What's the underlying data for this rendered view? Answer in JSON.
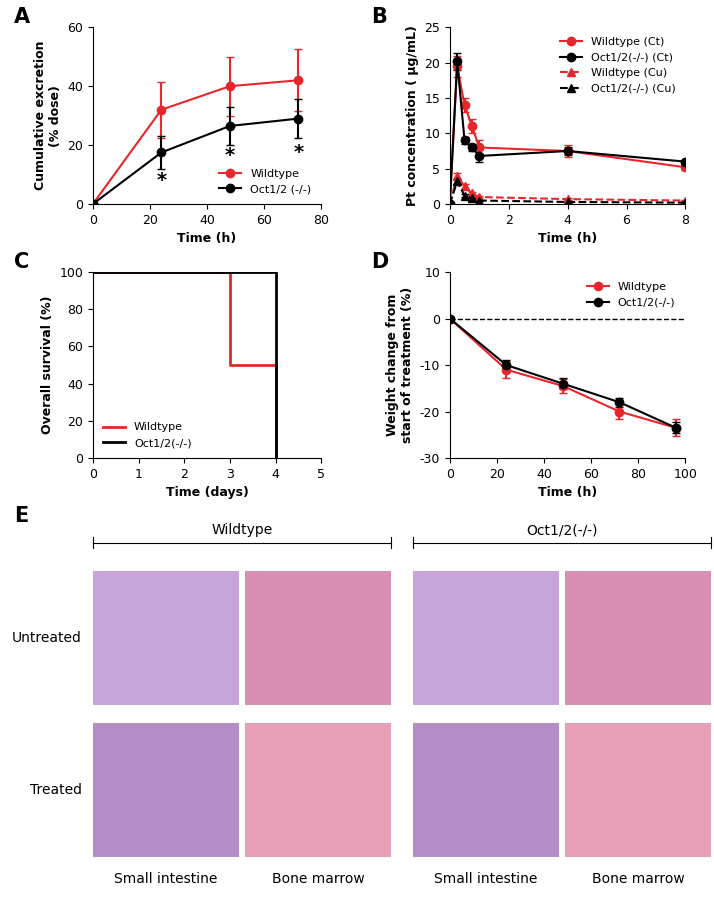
{
  "chart_data": [
    {
      "panel": "A",
      "type": "line",
      "xlabel": "Time (h)",
      "ylabel": "Cumulative excretion\n(% dose)",
      "x": [
        0,
        24,
        48,
        72
      ],
      "series": [
        {
          "name": "Wildtype",
          "color": "#e8262b",
          "marker": "circle",
          "line_style": "solid",
          "values": [
            0,
            32,
            40,
            42
          ],
          "errors": [
            0,
            9.5,
            10,
            10.5
          ]
        },
        {
          "name": "Oct1/2 (-/-)",
          "color": "#000000",
          "marker": "circle",
          "line_style": "solid",
          "values": [
            0,
            17.5,
            26.5,
            29
          ],
          "errors": [
            0,
            5.5,
            6.5,
            6.5
          ]
        }
      ],
      "annotations": [
        {
          "x": 24,
          "y": 8,
          "text": "*"
        },
        {
          "x": 48,
          "y": 16.5,
          "text": "*"
        },
        {
          "x": 72,
          "y": 17.5,
          "text": "*"
        }
      ],
      "xlim": [
        0,
        80
      ],
      "xticks": [
        0,
        20,
        40,
        60,
        80
      ],
      "ylim": [
        0,
        60
      ],
      "yticks": [
        0,
        20,
        40,
        60
      ],
      "legend": "lower right"
    },
    {
      "panel": "B",
      "type": "line",
      "xlabel": "Time (h)",
      "ylabel": "Pt concentration ( μg/mL)",
      "x": [
        0,
        0.25,
        0.5,
        0.75,
        1,
        4,
        8
      ],
      "series": [
        {
          "name": "Wildtype (Ct)",
          "color": "#e8262b",
          "marker": "circle",
          "line_style": "solid",
          "values": [
            0,
            19.5,
            14,
            11,
            8,
            7.5,
            5.2
          ],
          "errors": [
            0,
            1.5,
            1.0,
            1.0,
            1.0,
            0.8,
            0.4
          ]
        },
        {
          "name": "Oct1/2(-/-) (Ct)",
          "color": "#000000",
          "marker": "circle",
          "line_style": "solid",
          "values": [
            0,
            20.2,
            9,
            8,
            6.8,
            7.5,
            6
          ],
          "errors": [
            0,
            1.2,
            0.5,
            0.5,
            0.8,
            0.6,
            0.3
          ]
        },
        {
          "name": "Wildtype (Cu)",
          "color": "#e8262b",
          "marker": "triangle",
          "line_style": "dashed",
          "values": [
            0,
            4,
            2.5,
            1.5,
            1,
            0.7,
            0.5
          ],
          "errors": [
            0,
            0.4,
            0.3,
            0.2,
            0.1,
            0.1,
            0.1
          ]
        },
        {
          "name": "Oct1/2(-/-) (Cu)",
          "color": "#000000",
          "marker": "triangle",
          "line_style": "dashed",
          "values": [
            0,
            3.2,
            1.2,
            0.8,
            0.5,
            0.3,
            0.2
          ],
          "errors": [
            0,
            0.3,
            0.2,
            0.1,
            0.1,
            0.1,
            0.1
          ]
        }
      ],
      "xlim": [
        0,
        8
      ],
      "xticks": [
        0,
        2,
        4,
        6,
        8
      ],
      "ylim": [
        0,
        25
      ],
      "yticks": [
        0,
        5,
        10,
        15,
        20,
        25
      ],
      "legend": "upper right"
    },
    {
      "panel": "C",
      "type": "step",
      "xlabel": "Time (days)",
      "ylabel": "Overall survival (%)",
      "x": [
        0,
        3,
        4
      ],
      "series": [
        {
          "name": "Wildtype",
          "color": "#e8262b",
          "values": [
            100,
            50,
            0
          ]
        },
        {
          "name": "Oct1/2(-/-)",
          "color": "#000000",
          "values": [
            100,
            100,
            0
          ]
        }
      ],
      "xlim": [
        0,
        5
      ],
      "xticks": [
        0,
        1,
        2,
        3,
        4,
        5
      ],
      "ylim": [
        0,
        100
      ],
      "yticks": [
        0,
        20,
        40,
        60,
        80,
        100
      ],
      "legend": "lower left"
    },
    {
      "panel": "D",
      "type": "line",
      "xlabel": "Time (h)",
      "ylabel": "Weight change from\nstart of treatment (%)",
      "x": [
        0,
        24,
        48,
        72,
        96
      ],
      "series": [
        {
          "name": "Wildtype",
          "color": "#e8262b",
          "marker": "circle",
          "line_style": "solid",
          "values": [
            0,
            -11,
            -14.5,
            -20,
            -23.5
          ],
          "errors": [
            0,
            1.8,
            1.5,
            1.5,
            1.8
          ]
        },
        {
          "name": "Oct1/2(-/-)",
          "color": "#000000",
          "marker": "circle",
          "line_style": "solid",
          "values": [
            0,
            -10,
            -14,
            -18,
            -23.5
          ],
          "errors": [
            0,
            1.0,
            1.2,
            1.0,
            1.2
          ]
        }
      ],
      "reference_line": 0,
      "xlim": [
        0,
        100
      ],
      "xticks": [
        0,
        20,
        40,
        60,
        80,
        100
      ],
      "ylim": [
        -30,
        10
      ],
      "yticks": [
        -30,
        -20,
        -10,
        0,
        10
      ],
      "legend": "upper right"
    }
  ],
  "image_panel": {
    "panel": "E",
    "groups": [
      "Wildtype",
      "Oct1/2(-/-)"
    ],
    "rows": [
      "Untreated",
      "Treated"
    ],
    "columns": [
      "Small intestine",
      "Bone marrow"
    ]
  }
}
